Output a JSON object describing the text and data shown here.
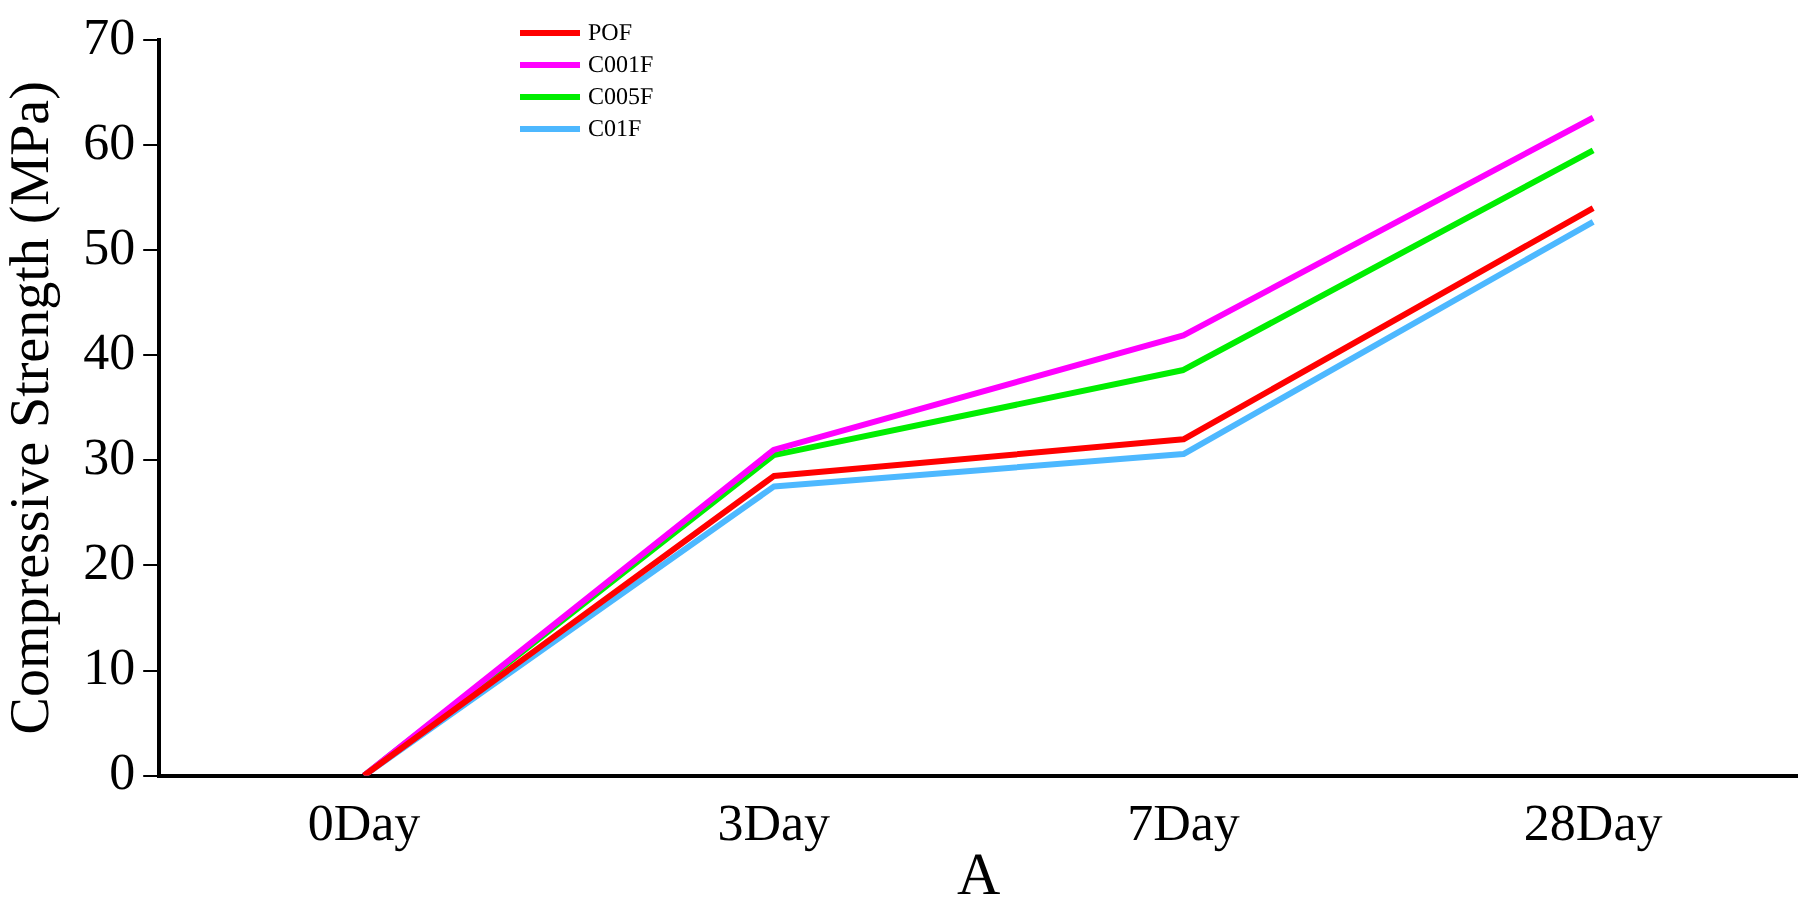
{
  "chart_data": {
    "type": "line",
    "xlabel": "A",
    "ylabel": "Compressive Strength (MPa)",
    "categories": [
      "0Day",
      "3Day",
      "7Day",
      "28Day"
    ],
    "ylim": [
      0,
      70
    ],
    "yticks": [
      0,
      10,
      20,
      30,
      40,
      50,
      60,
      70
    ],
    "grid": false,
    "legend": "top left",
    "marker": "none",
    "line_style": "solid",
    "series": [
      {
        "name": "POF",
        "color": "#ff0000",
        "values": [
          0,
          28.5,
          32,
          54
        ]
      },
      {
        "name": "C001F",
        "color": "#ff00ff",
        "values": [
          0,
          31,
          41.9,
          62.6
        ]
      },
      {
        "name": "C005F",
        "color": "#00ee00",
        "values": [
          0,
          30.5,
          38.6,
          59.5
        ]
      },
      {
        "name": "C01F",
        "color": "#4db8ff",
        "values": [
          0,
          27.5,
          30.6,
          52.7
        ]
      }
    ]
  }
}
